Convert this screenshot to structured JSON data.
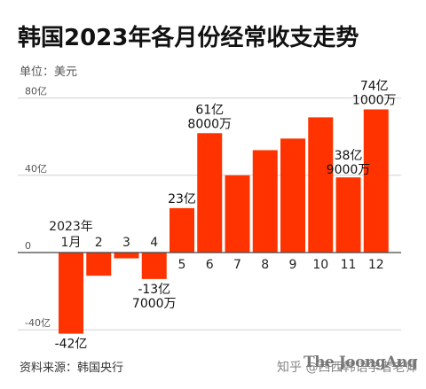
{
  "title": "韩国2023年各月份经常收支走势",
  "unit": "单位：美元",
  "source": "资料来源：韩国央行",
  "brand": "The JoongAng",
  "watermark": "知乎 @西西韩语学者老师",
  "colors": {
    "bar": "#ff3300",
    "axis": "#444444",
    "grid": "#d0d0d0"
  },
  "chart_data": {
    "type": "bar",
    "title": "韩国2023年各月份经常收支走势",
    "ylabel": "单位：美元",
    "ylim": [
      -46,
      82
    ],
    "yticks": [
      {
        "value": 80,
        "label": "80亿"
      },
      {
        "value": 40,
        "label": "40亿"
      },
      {
        "value": 0,
        "label": "0"
      },
      {
        "value": -40,
        "label": "-40亿"
      }
    ],
    "categories": [
      "1月",
      "2",
      "3",
      "4",
      "5",
      "6",
      "7",
      "8",
      "9",
      "10",
      "11",
      "12"
    ],
    "year_label": "2023年",
    "values": [
      -42,
      -12,
      -3,
      -13.7,
      23,
      61.8,
      40,
      53,
      59,
      70,
      38.9,
      74.1
    ],
    "annotations": [
      {
        "index": 0,
        "lines": [
          "-42亿"
        ]
      },
      {
        "index": 3,
        "lines": [
          "-13亿",
          "7000万"
        ]
      },
      {
        "index": 4,
        "lines": [
          "23亿"
        ]
      },
      {
        "index": 5,
        "lines": [
          "61亿",
          "8000万"
        ]
      },
      {
        "index": 10,
        "lines": [
          "38亿",
          "9000万"
        ]
      },
      {
        "index": 11,
        "lines": [
          "74亿",
          "1000万"
        ]
      }
    ]
  }
}
